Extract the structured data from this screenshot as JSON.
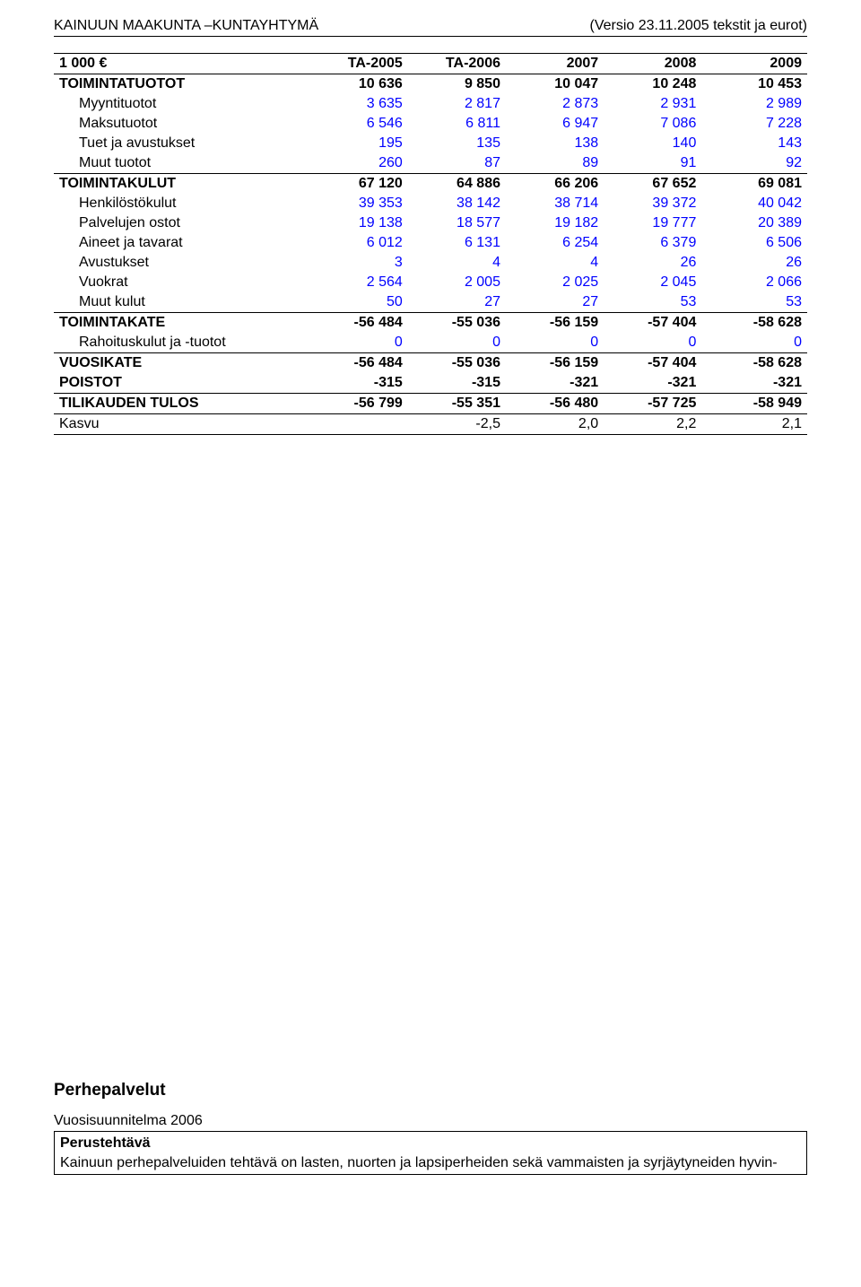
{
  "header": {
    "left": "KAINUUN MAAKUNTA –KUNTAYHTYMÄ",
    "right": "(Versio 23.11.2005 tekstit ja  eurot)"
  },
  "table": {
    "columns": [
      "1 000 €",
      "TA-2005",
      "TA-2006",
      "2007",
      "2008",
      "2009"
    ],
    "rows": [
      {
        "label": "TOIMINTATUOTOT",
        "vals": [
          "10 636",
          "9 850",
          "10 047",
          "10 248",
          "10 453"
        ],
        "bold": true,
        "section_top": true,
        "color": "#000000",
        "indent": 0
      },
      {
        "label": "Myyntituotot",
        "vals": [
          "3 635",
          "2 817",
          "2 873",
          "2 931",
          "2 989"
        ],
        "bold": false,
        "color": "blue",
        "indent": 1
      },
      {
        "label": "Maksutuotot",
        "vals": [
          "6 546",
          "6 811",
          "6 947",
          "7 086",
          "7 228"
        ],
        "bold": false,
        "color": "blue",
        "indent": 1
      },
      {
        "label": "Tuet ja avustukset",
        "vals": [
          "195",
          "135",
          "138",
          "140",
          "143"
        ],
        "bold": false,
        "color": "blue",
        "indent": 1
      },
      {
        "label": "Muut tuotot",
        "vals": [
          "260",
          "87",
          "89",
          "91",
          "92"
        ],
        "bold": false,
        "color": "blue",
        "indent": 1
      },
      {
        "label": "TOIMINTAKULUT",
        "vals": [
          "67 120",
          "64 886",
          "66 206",
          "67 652",
          "69 081"
        ],
        "bold": true,
        "section_top": true,
        "color": "#000000",
        "indent": 0
      },
      {
        "label": "Henkilöstökulut",
        "vals": [
          "39 353",
          "38 142",
          "38 714",
          "39 372",
          "40 042"
        ],
        "bold": false,
        "color": "blue",
        "indent": 1
      },
      {
        "label": "Palvelujen ostot",
        "vals": [
          "19 138",
          "18 577",
          "19 182",
          "19 777",
          "20 389"
        ],
        "bold": false,
        "color": "blue",
        "indent": 1
      },
      {
        "label": "Aineet ja tavarat",
        "vals": [
          "6 012",
          "6 131",
          "6 254",
          "6 379",
          "6 506"
        ],
        "bold": false,
        "color": "blue",
        "indent": 1
      },
      {
        "label": "Avustukset",
        "vals": [
          "3",
          "4",
          "4",
          "26",
          "26"
        ],
        "bold": false,
        "color": "blue",
        "indent": 1
      },
      {
        "label": "Vuokrat",
        "vals": [
          "2 564",
          "2 005",
          "2 025",
          "2 045",
          "2 066"
        ],
        "bold": false,
        "color": "blue",
        "indent": 1
      },
      {
        "label": "Muut kulut",
        "vals": [
          "50",
          "27",
          "27",
          "53",
          "53"
        ],
        "bold": false,
        "color": "blue",
        "indent": 1
      },
      {
        "label": "TOIMINTAKATE",
        "vals": [
          "-56 484",
          "-55 036",
          "-56 159",
          "-57 404",
          "-58 628"
        ],
        "bold": true,
        "section_top": true,
        "color": "#000000",
        "indent": 0
      },
      {
        "label": "Rahoituskulut ja -tuotot",
        "vals": [
          "0",
          "0",
          "0",
          "0",
          "0"
        ],
        "bold": false,
        "color": "blue",
        "indent": 1
      },
      {
        "label": "VUOSIKATE",
        "vals": [
          "-56 484",
          "-55 036",
          "-56 159",
          "-57 404",
          "-58 628"
        ],
        "bold": true,
        "section_top": true,
        "color": "#000000",
        "indent": 0
      },
      {
        "label": "POISTOT",
        "vals": [
          "-315",
          "-315",
          "-321",
          "-321",
          "-321"
        ],
        "bold": true,
        "color": "#000000",
        "indent": 0
      },
      {
        "label": "TILIKAUDEN TULOS",
        "vals": [
          "-56 799",
          "-55 351",
          "-56 480",
          "-57 725",
          "-58 949"
        ],
        "bold": true,
        "section_top": true,
        "section_bottom": true,
        "color": "#000000",
        "indent": 0
      },
      {
        "label": "Kasvu",
        "vals": [
          "",
          "-2,5",
          "2,0",
          "2,2",
          "2,1"
        ],
        "bold": false,
        "section_bottom": true,
        "color": "#000000",
        "indent": 0
      }
    ],
    "col_widths": [
      "34%",
      "13%",
      "13%",
      "13%",
      "13%",
      "14%"
    ]
  },
  "bottom": {
    "title": "Perhepalvelut",
    "subtitle": "Vuosisuunnitelma 2006",
    "box_heading": "Perustehtävä",
    "box_text": "Kainuun perhepalveluiden tehtävä on lasten, nuorten ja lapsiperheiden sekä vammaisten ja syrjäytyneiden hyvin-"
  },
  "colors": {
    "text": "#000000",
    "blue": "#0000ff",
    "border": "#000000",
    "background": "#ffffff"
  }
}
